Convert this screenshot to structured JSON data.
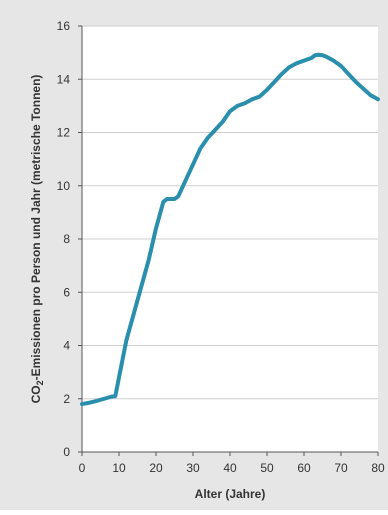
{
  "chart_data": {
    "type": "line",
    "xlabel": "Alter (Jahre)",
    "ylabel": {
      "prefix": "CO",
      "subscript": "2",
      "suffix": "-Emissionen pro Person und Jahr (metrische Tonnen)"
    },
    "xlim": [
      0,
      80
    ],
    "ylim": [
      0,
      16
    ],
    "x_ticks": [
      0,
      10,
      20,
      30,
      40,
      50,
      60,
      70,
      80
    ],
    "y_ticks": [
      0,
      2,
      4,
      6,
      8,
      10,
      12,
      14,
      16
    ],
    "grid": {
      "horizontal": true,
      "vertical": false
    },
    "colors": {
      "background": "#e6e6e6",
      "plot_background": "#ffffff",
      "grid": "#cfcfcf",
      "line": "#2a8fad",
      "text": "#333333"
    },
    "series": [
      {
        "x": [
          0,
          2,
          4,
          6,
          8,
          9,
          10,
          12,
          14,
          16,
          18,
          20,
          22,
          23,
          24,
          25,
          26,
          27,
          28,
          30,
          32,
          34,
          36,
          38,
          40,
          42,
          44,
          46,
          48,
          50,
          52,
          54,
          56,
          58,
          60,
          62,
          63,
          64,
          65,
          66,
          68,
          70,
          72,
          74,
          76,
          78,
          80
        ],
        "y": [
          1.8,
          1.85,
          1.92,
          2.0,
          2.08,
          2.1,
          2.8,
          4.2,
          5.2,
          6.2,
          7.2,
          8.4,
          9.4,
          9.5,
          9.5,
          9.5,
          9.6,
          9.9,
          10.2,
          10.8,
          11.4,
          11.8,
          12.1,
          12.4,
          12.8,
          13.0,
          13.1,
          13.25,
          13.35,
          13.6,
          13.9,
          14.2,
          14.45,
          14.6,
          14.7,
          14.8,
          14.9,
          14.92,
          14.9,
          14.85,
          14.7,
          14.5,
          14.2,
          13.9,
          13.65,
          13.4,
          13.25
        ]
      }
    ]
  }
}
